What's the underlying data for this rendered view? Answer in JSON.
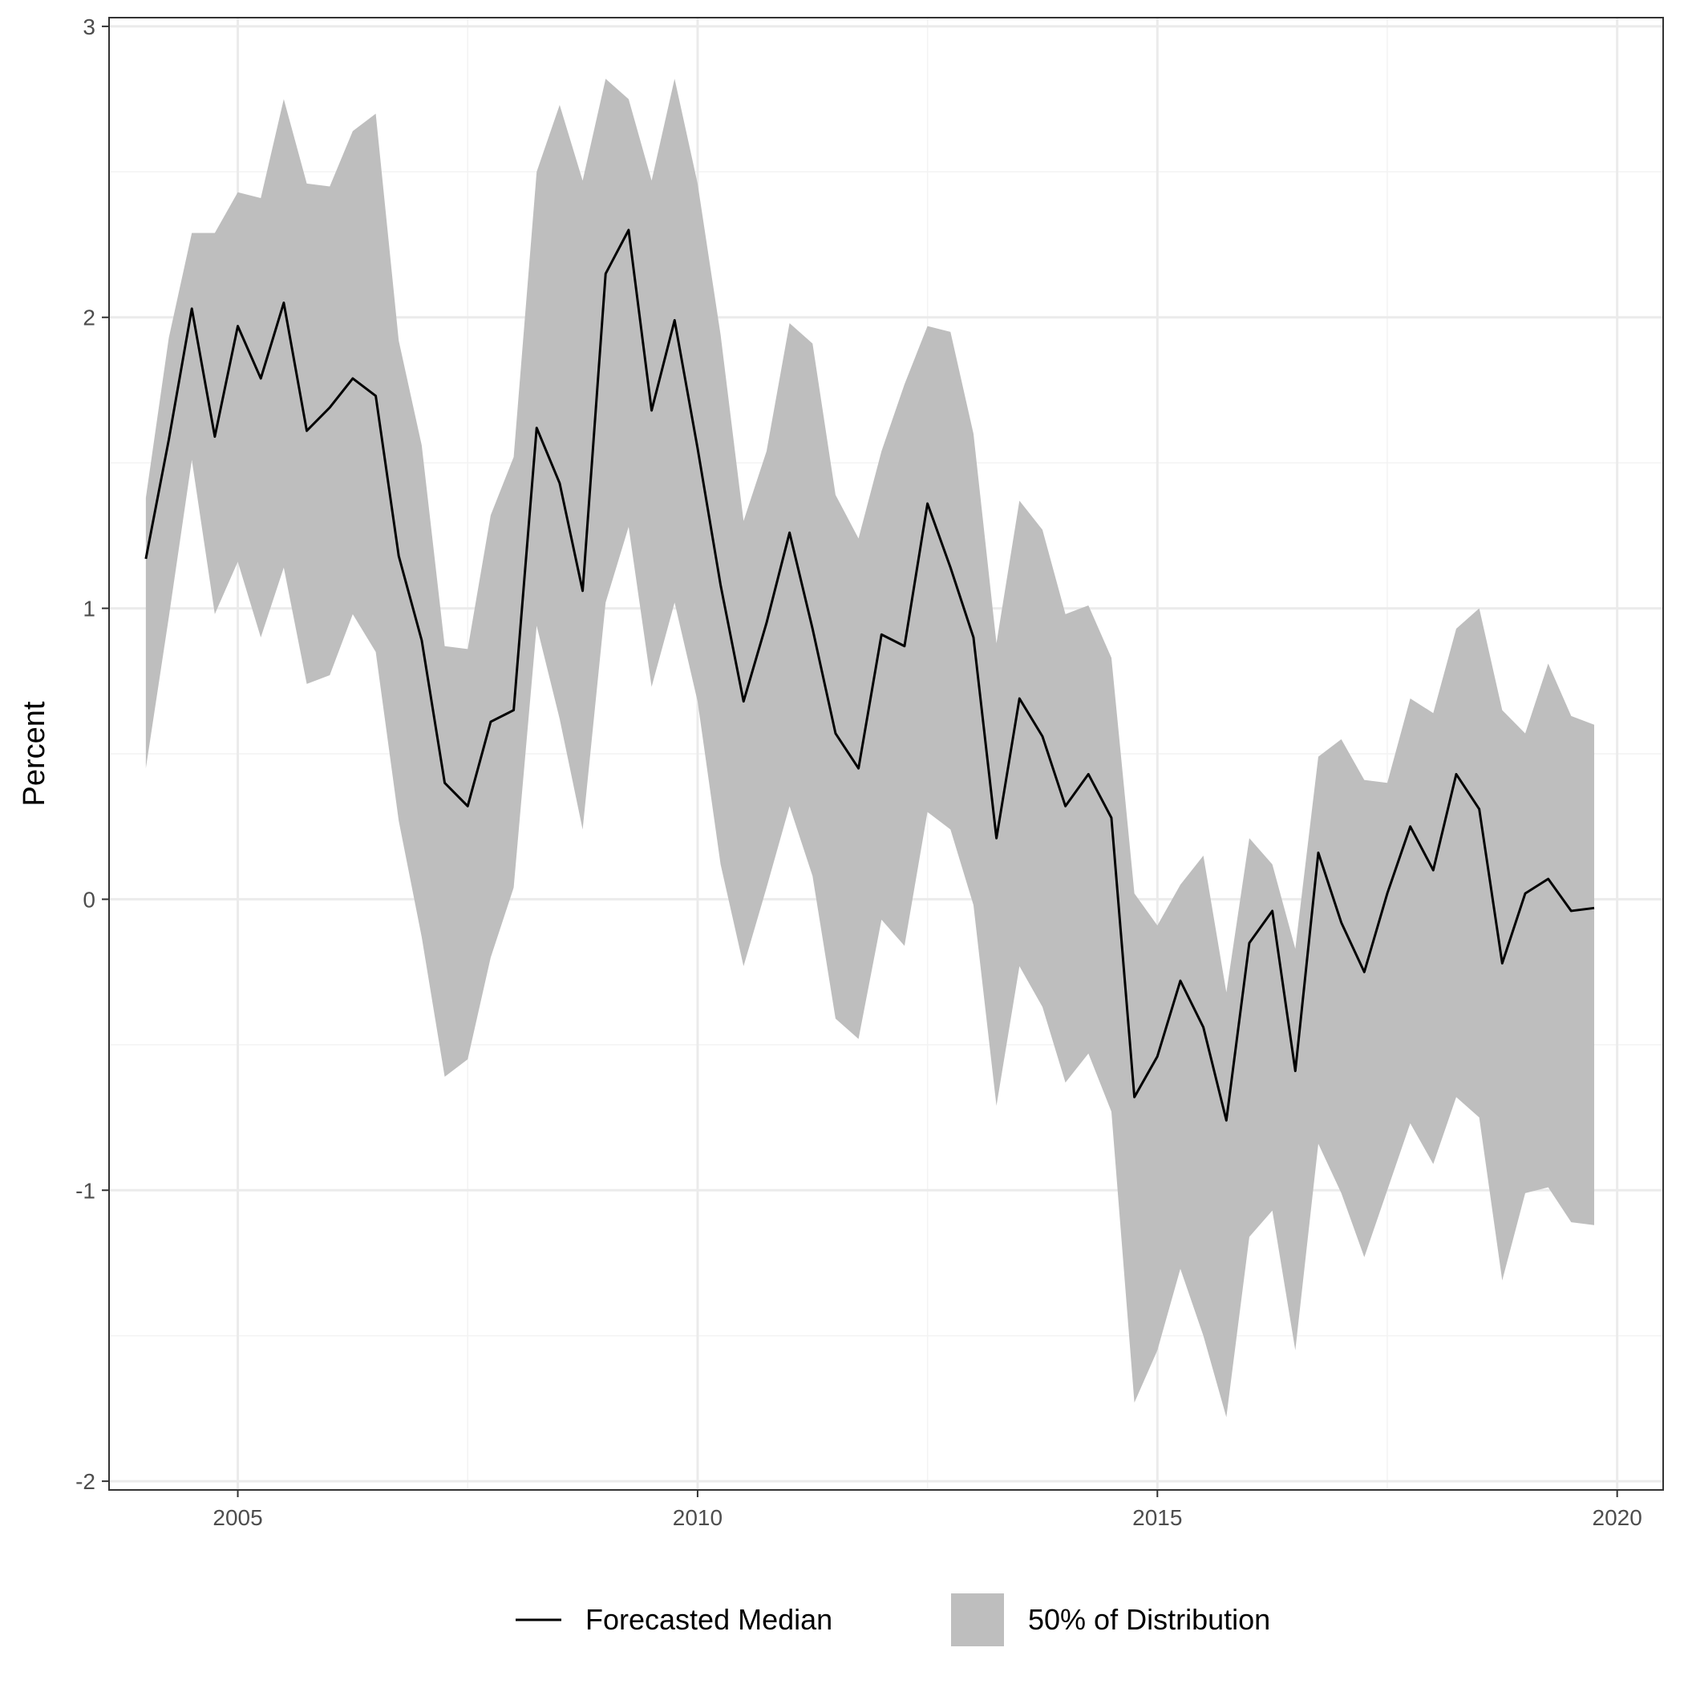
{
  "chart_data": {
    "type": "area",
    "title": "",
    "xlabel": "",
    "ylabel": "Percent",
    "xlim": [
      2003.6,
      2020.5
    ],
    "ylim": [
      -2.03,
      3.03
    ],
    "x_ticks": [
      2005,
      2010,
      2015,
      2020
    ],
    "x_tick_labels": [
      "2005",
      "2010",
      "2015",
      "2020"
    ],
    "y_ticks": [
      -2,
      -1,
      0,
      1,
      2,
      3
    ],
    "y_tick_labels": [
      "-2",
      "-1",
      "0",
      "1",
      "2",
      "3"
    ],
    "grid": true,
    "legend_position": "bottom",
    "colors": {
      "median": "#000000",
      "band": "#bebebe",
      "grid_major": "#ebebeb",
      "grid_minor": "#f3f3f3",
      "panel_border": "#333333"
    },
    "legend": [
      {
        "key": "median",
        "label": "Forecasted Median"
      },
      {
        "key": "band",
        "label": "50% of Distribution"
      }
    ],
    "x": [
      2004.0,
      2004.25,
      2004.5,
      2004.75,
      2005.0,
      2005.25,
      2005.5,
      2005.75,
      2006.0,
      2006.25,
      2006.5,
      2006.75,
      2007.0,
      2007.25,
      2007.5,
      2007.75,
      2008.0,
      2008.25,
      2008.5,
      2008.75,
      2009.0,
      2009.25,
      2009.5,
      2009.75,
      2010.0,
      2010.25,
      2010.5,
      2010.75,
      2011.0,
      2011.25,
      2011.5,
      2011.75,
      2012.0,
      2012.25,
      2012.5,
      2012.75,
      2013.0,
      2013.25,
      2013.5,
      2013.75,
      2014.0,
      2014.25,
      2014.5,
      2014.75,
      2015.0,
      2015.25,
      2015.5,
      2015.75,
      2016.0,
      2016.25,
      2016.5,
      2016.75,
      2017.0,
      2017.25,
      2017.5,
      2017.75,
      2018.0,
      2018.25,
      2018.5,
      2018.75,
      2019.0,
      2019.25,
      2019.5,
      2019.75
    ],
    "series": [
      {
        "name": "Forecasted Median",
        "values": [
          1.17,
          1.58,
          2.03,
          1.59,
          1.97,
          1.79,
          2.05,
          1.61,
          1.69,
          1.79,
          1.73,
          1.18,
          0.89,
          0.4,
          0.32,
          0.61,
          0.65,
          1.62,
          1.43,
          1.06,
          2.15,
          2.3,
          1.68,
          1.99,
          1.55,
          1.08,
          0.68,
          0.95,
          1.26,
          0.93,
          0.57,
          0.45,
          0.91,
          0.87,
          1.36,
          1.14,
          0.9,
          0.21,
          0.69,
          0.56,
          0.32,
          0.43,
          0.28,
          -0.68,
          -0.54,
          -0.28,
          -0.44,
          -0.76,
          -0.15,
          -0.04,
          -0.59,
          0.16,
          -0.08,
          -0.25,
          0.02,
          0.25,
          0.1,
          0.43,
          0.31,
          -0.22,
          0.02,
          0.07,
          -0.04,
          -0.03
        ]
      }
    ],
    "band": {
      "name": "50% of Distribution",
      "lower": [
        0.45,
        0.97,
        1.51,
        0.98,
        1.16,
        0.9,
        1.14,
        0.74,
        0.77,
        0.98,
        0.85,
        0.27,
        -0.13,
        -0.61,
        -0.55,
        -0.2,
        0.04,
        0.94,
        0.62,
        0.24,
        1.02,
        1.28,
        0.73,
        1.02,
        0.68,
        0.12,
        -0.23,
        0.04,
        0.32,
        0.08,
        -0.41,
        -0.48,
        -0.07,
        -0.16,
        0.3,
        0.24,
        -0.02,
        -0.71,
        -0.23,
        -0.37,
        -0.63,
        -0.53,
        -0.73,
        -1.73,
        -1.55,
        -1.27,
        -1.5,
        -1.78,
        -1.16,
        -1.07,
        -1.55,
        -0.84,
        -1.01,
        -1.23,
        -1.0,
        -0.77,
        -0.91,
        -0.68,
        -0.75,
        -1.31,
        -1.01,
        -0.99,
        -1.11,
        -1.12
      ],
      "upper": [
        1.38,
        1.93,
        2.29,
        2.29,
        2.43,
        2.41,
        2.75,
        2.46,
        2.45,
        2.64,
        2.7,
        1.92,
        1.56,
        0.87,
        0.86,
        1.32,
        1.52,
        2.5,
        2.73,
        2.47,
        2.82,
        2.75,
        2.47,
        2.82,
        2.46,
        1.94,
        1.3,
        1.54,
        1.98,
        1.91,
        1.39,
        1.24,
        1.54,
        1.77,
        1.97,
        1.95,
        1.6,
        0.88,
        1.37,
        1.27,
        0.98,
        1.01,
        0.83,
        0.02,
        -0.09,
        0.05,
        0.15,
        -0.32,
        0.21,
        0.12,
        -0.17,
        0.49,
        0.55,
        0.41,
        0.4,
        0.69,
        0.64,
        0.93,
        1.0,
        0.65,
        0.57,
        0.81,
        0.63,
        0.6
      ]
    }
  }
}
